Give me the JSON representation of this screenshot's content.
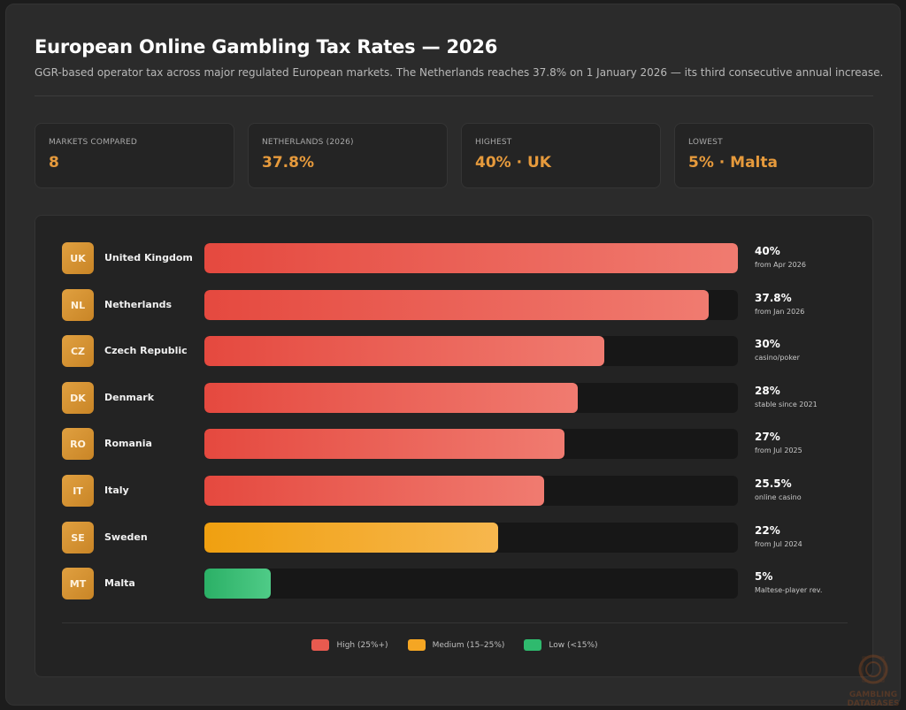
{
  "header": {
    "title": "European Online Gambling Tax Rates — 2026",
    "subtitle": "GGR-based operator tax across major regulated European markets. The Netherlands reaches 37.8% on 1 January 2026 — its third consecutive annual increase."
  },
  "stats": [
    {
      "label": "MARKETS COMPARED",
      "value": "8"
    },
    {
      "label": "NETHERLANDS (2026)",
      "value": "37.8%"
    },
    {
      "label": "HIGHEST",
      "value": "40% · UK"
    },
    {
      "label": "LOWEST",
      "value": "5% · Malta"
    }
  ],
  "chart_data": {
    "type": "bar",
    "orientation": "horizontal",
    "xlim": [
      0,
      40
    ],
    "categories": [
      "United Kingdom",
      "Netherlands",
      "Czech Republic",
      "Denmark",
      "Romania",
      "Italy",
      "Sweden",
      "Malta"
    ],
    "codes": [
      "UK",
      "NL",
      "CZ",
      "DK",
      "RO",
      "IT",
      "SE",
      "MT"
    ],
    "values": [
      40,
      37.8,
      30,
      28,
      27,
      25.5,
      22,
      5
    ],
    "value_labels": [
      "40%",
      "37.8%",
      "30%",
      "28%",
      "27%",
      "25.5%",
      "22%",
      "5%"
    ],
    "notes": [
      "from Apr 2026",
      "from Jan 2026",
      "casino/poker",
      "stable since 2021",
      "from Jul 2025",
      "online casino",
      "from Jul 2024",
      "Maltese-player rev."
    ],
    "tiers": [
      "high",
      "high",
      "high",
      "high",
      "high",
      "high",
      "medium",
      "low"
    ],
    "legend": [
      {
        "tier": "high",
        "label": "High (25%+)",
        "color": "#e85a4f"
      },
      {
        "tier": "medium",
        "label": "Medium (15–25%)",
        "color": "#f5a623"
      },
      {
        "tier": "low",
        "label": "Low (<15%)",
        "color": "#2fba6e"
      }
    ],
    "grid": false,
    "legend_position": "bottom-center"
  },
  "colors": {
    "accent": "#e69a3c",
    "high": "#e85a4f",
    "medium": "#f5a623",
    "low": "#2fba6e"
  },
  "watermark": {
    "line1": "GAMBLING",
    "line2": "DATABASES"
  }
}
